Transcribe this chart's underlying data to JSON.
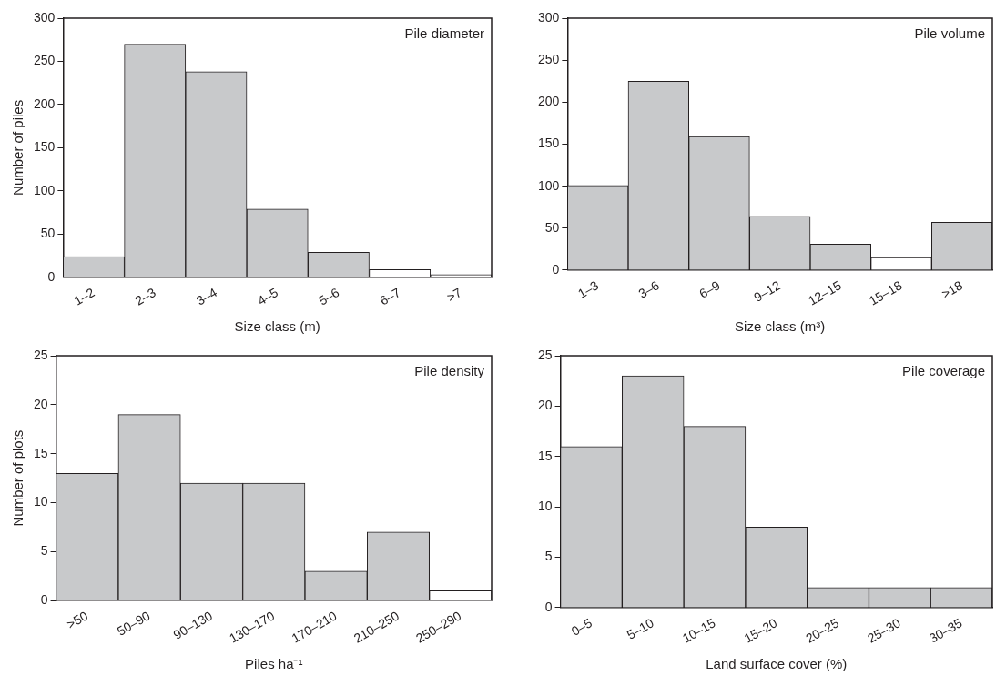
{
  "chart_data": [
    {
      "type": "bar",
      "title": "Pile diameter",
      "xlabel": "Size class (m)",
      "ylabel": "Number of piles",
      "categories": [
        "1–2",
        "2–3",
        "3–4",
        "4–5",
        "5–6",
        "6–7",
        ">7"
      ],
      "values": [
        24,
        270,
        238,
        79,
        29,
        9,
        3
      ],
      "colors": [
        "#c8c9cb",
        "#c8c9cb",
        "#c8c9cb",
        "#c8c9cb",
        "#c8c9cb",
        "#ffffff",
        "#ffffff"
      ],
      "ylim": [
        0,
        300
      ],
      "yticks": [
        0,
        50,
        100,
        150,
        200,
        250,
        300
      ],
      "grid": false
    },
    {
      "type": "bar",
      "title": "Pile volume",
      "xlabel": "Size class (m³)",
      "categories": [
        "1–3",
        "3–6",
        "6–9",
        "9–12",
        "12–15",
        "15–18",
        ">18"
      ],
      "values": [
        101,
        225,
        159,
        64,
        31,
        15,
        57
      ],
      "colors": [
        "#c8c9cb",
        "#c8c9cb",
        "#c8c9cb",
        "#c8c9cb",
        "#c8c9cb",
        "#ffffff",
        "#c8c9cb"
      ],
      "ylim": [
        0,
        300
      ],
      "yticks": [
        0,
        50,
        100,
        150,
        200,
        250,
        300
      ],
      "grid": false
    },
    {
      "type": "bar",
      "title": "Pile density",
      "xlabel": "Piles ha⁻¹",
      "ylabel": "Number of plots",
      "categories": [
        ">50",
        "50–90",
        "90–130",
        "130–170",
        "170–210",
        "210–250",
        "250–290"
      ],
      "values": [
        13,
        19,
        12,
        12,
        3,
        7,
        1
      ],
      "colors": [
        "#c8c9cb",
        "#c8c9cb",
        "#c8c9cb",
        "#c8c9cb",
        "#c8c9cb",
        "#c8c9cb",
        "#ffffff"
      ],
      "ylim": [
        0,
        25
      ],
      "yticks": [
        0,
        5,
        10,
        15,
        20,
        25
      ],
      "grid": false
    },
    {
      "type": "bar",
      "title": "Pile coverage",
      "xlabel": "Land surface cover (%)",
      "categories": [
        "0–5",
        "5–10",
        "10–15",
        "15–20",
        "20–25",
        "25–30",
        "30–35"
      ],
      "values": [
        16,
        23,
        18,
        8,
        2,
        2,
        2
      ],
      "colors": [
        "#c8c9cb",
        "#c8c9cb",
        "#c8c9cb",
        "#c8c9cb",
        "#c8c9cb",
        "#c8c9cb",
        "#c8c9cb"
      ],
      "ylim": [
        0,
        25
      ],
      "yticks": [
        0,
        5,
        10,
        15,
        20,
        25
      ],
      "grid": false
    }
  ]
}
